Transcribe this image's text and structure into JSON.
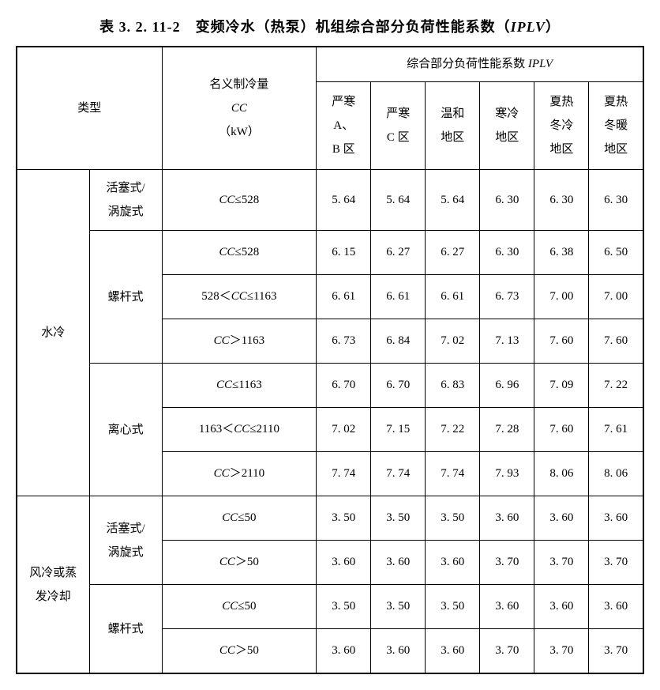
{
  "title_prefix": "表 3. 2. 11-2　变频冷水（热泵）机组综合部分负荷性能系数（",
  "title_italic": "IPLV",
  "title_suffix": "）",
  "header": {
    "type_label": "类型",
    "cc_line1": "名义制冷量",
    "cc_italic": "CC",
    "cc_unit": "（kW）",
    "iplv_prefix": "综合部分负荷性能系数 ",
    "iplv_italic": "IPLV",
    "regions": [
      "严寒\nA、\nB 区",
      "严寒\nC 区",
      "温和\n地区",
      "寒冷\n地区",
      "夏热\n冬冷\n地区",
      "夏热\n冬暖\n地区"
    ]
  },
  "groups": [
    {
      "name": "水冷",
      "subgroups": [
        {
          "name": "活塞式/\n涡旋式",
          "rows": [
            {
              "cc": "CC≤528",
              "v": [
                "5. 64",
                "5. 64",
                "5. 64",
                "6. 30",
                "6. 30",
                "6. 30"
              ]
            }
          ]
        },
        {
          "name": "螺杆式",
          "rows": [
            {
              "cc": "CC≤528",
              "v": [
                "6. 15",
                "6. 27",
                "6. 27",
                "6. 30",
                "6. 38",
                "6. 50"
              ]
            },
            {
              "cc": "528＜CC≤1163",
              "v": [
                "6. 61",
                "6. 61",
                "6. 61",
                "6. 73",
                "7. 00",
                "7. 00"
              ]
            },
            {
              "cc": "CC＞1163",
              "v": [
                "6. 73",
                "6. 84",
                "7. 02",
                "7. 13",
                "7. 60",
                "7. 60"
              ]
            }
          ]
        },
        {
          "name": "离心式",
          "rows": [
            {
              "cc": "CC≤1163",
              "v": [
                "6. 70",
                "6. 70",
                "6. 83",
                "6. 96",
                "7. 09",
                "7. 22"
              ]
            },
            {
              "cc": "1163＜CC≤2110",
              "v": [
                "7. 02",
                "7. 15",
                "7. 22",
                "7. 28",
                "7. 60",
                "7. 61"
              ]
            },
            {
              "cc": "CC＞2110",
              "v": [
                "7. 74",
                "7. 74",
                "7. 74",
                "7. 93",
                "8. 06",
                "8. 06"
              ]
            }
          ]
        }
      ]
    },
    {
      "name": "风冷或蒸\n发冷却",
      "subgroups": [
        {
          "name": "活塞式/\n涡旋式",
          "rows": [
            {
              "cc": "CC≤50",
              "v": [
                "3. 50",
                "3. 50",
                "3. 50",
                "3. 60",
                "3. 60",
                "3. 60"
              ]
            },
            {
              "cc": "CC＞50",
              "v": [
                "3. 60",
                "3. 60",
                "3. 60",
                "3. 70",
                "3. 70",
                "3. 70"
              ]
            }
          ]
        },
        {
          "name": "螺杆式",
          "rows": [
            {
              "cc": "CC≤50",
              "v": [
                "3. 50",
                "3. 50",
                "3. 50",
                "3. 60",
                "3. 60",
                "3. 60"
              ]
            },
            {
              "cc": "CC＞50",
              "v": [
                "3. 60",
                "3. 60",
                "3. 60",
                "3. 70",
                "3. 70",
                "3. 70"
              ]
            }
          ]
        }
      ]
    }
  ],
  "style": {
    "border_color": "#000000",
    "background_color": "#ffffff",
    "text_color": "#000000",
    "font_family_cn": "SimSun",
    "font_family_latin": "Times New Roman",
    "title_fontsize": 18,
    "cell_fontsize": 15
  }
}
